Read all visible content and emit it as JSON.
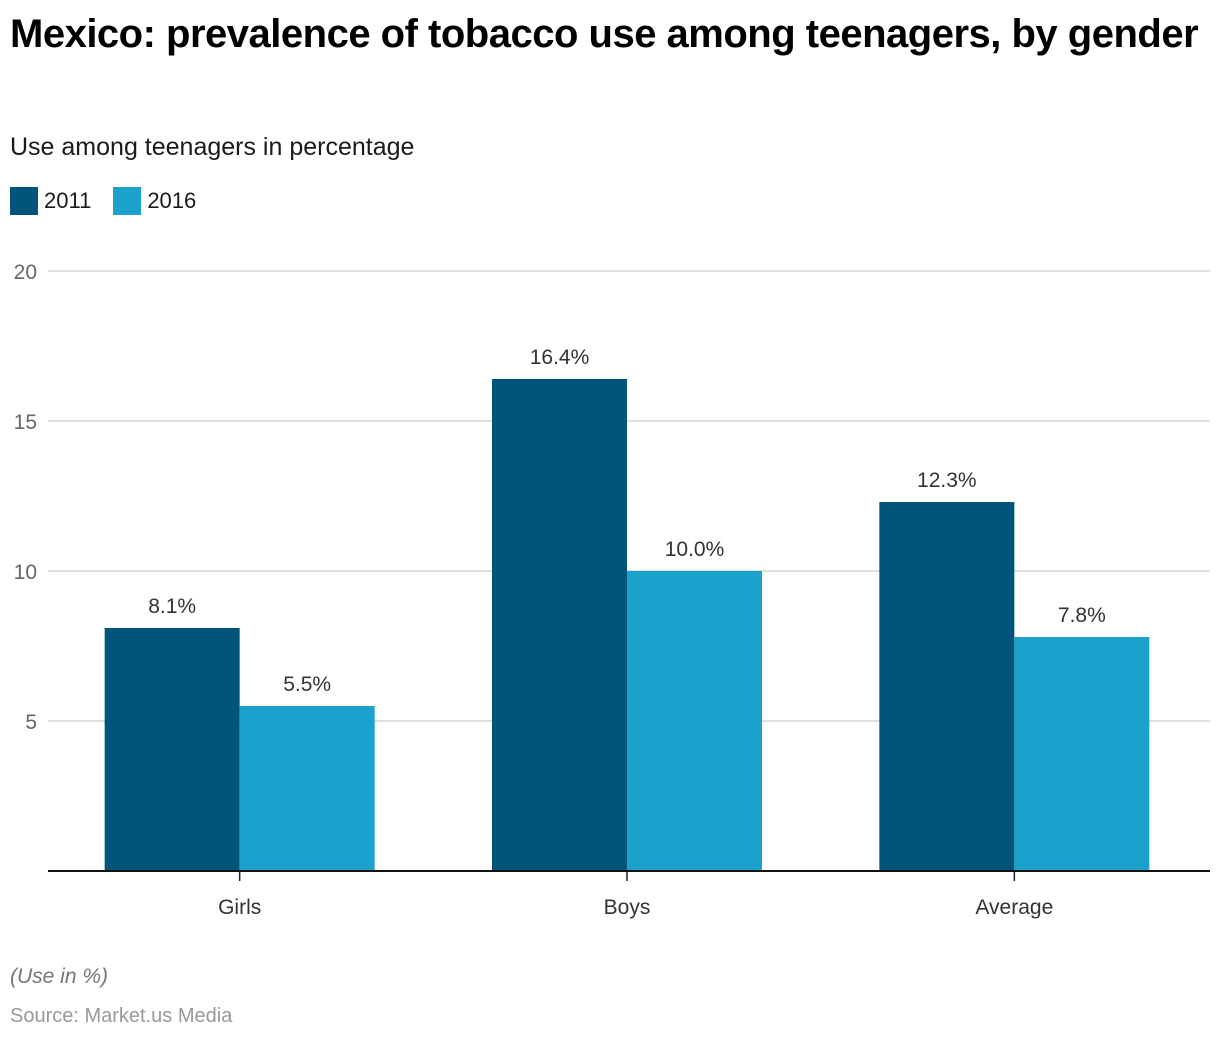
{
  "header": {
    "title": "Mexico: prevalence of tobacco use among teenagers, by gender",
    "subtitle": "Use among teenagers in percentage"
  },
  "legend": [
    {
      "label": "2011",
      "color": "#02547b"
    },
    {
      "label": "2016",
      "color": "#1aa1cc"
    }
  ],
  "footer": {
    "note": "(Use in %)",
    "source": "Source: Market.us Media"
  },
  "chart_data": {
    "type": "bar",
    "title": "Mexico: prevalence of tobacco use among teenagers, by gender",
    "subtitle": "Use among teenagers in percentage",
    "xlabel": "",
    "ylabel": "",
    "categories": [
      "Girls",
      "Boys",
      "Average"
    ],
    "series": [
      {
        "name": "2011",
        "color": "#02547b",
        "values": [
          8.1,
          16.4,
          12.3
        ],
        "labels": [
          "8.1%",
          "16.4%",
          "12.3%"
        ]
      },
      {
        "name": "2016",
        "color": "#1aa1cc",
        "values": [
          5.5,
          10.0,
          7.8
        ],
        "labels": [
          "5.5%",
          "10.0%",
          "7.8%"
        ]
      }
    ],
    "ylim": [
      0,
      20
    ],
    "yticks": [
      5,
      10,
      15,
      20
    ],
    "grid": true,
    "legend_position": "top-left"
  }
}
